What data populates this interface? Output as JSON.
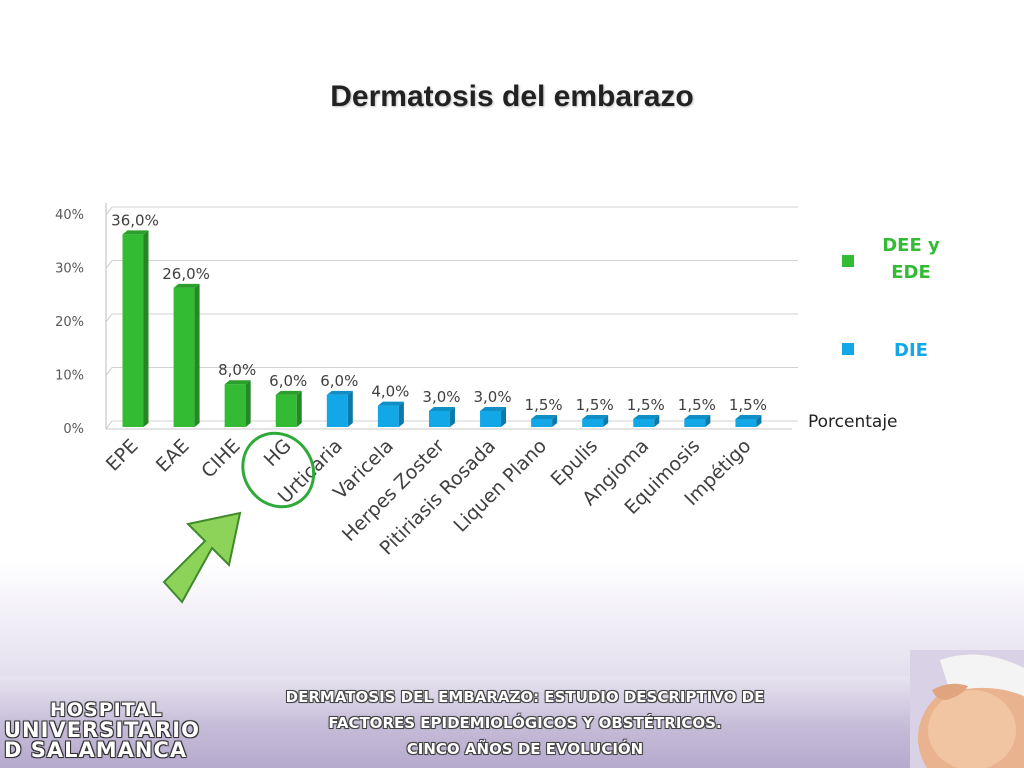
{
  "slide": {
    "title": "Dermatosis del embarazo",
    "footer_lines": [
      "DERMATOSIS DEL EMBARAZO: ESTUDIO DESCRIPTIVO DE",
      "FACTORES EPIDEMIOLÓGICOS Y OBSTÉTRICOS.",
      "CINCO AÑOS DE EVOLUCIÓN"
    ],
    "logo_lines": [
      "HOSPITAL",
      "UNIVERSITARIO",
      "D SALAMANCA"
    ]
  },
  "colors": {
    "green": "#33bb33",
    "blue": "#12a8e8",
    "annotation_green": "#2eaa3a",
    "arrow_fill": "#8dd35a"
  },
  "chart_data": {
    "type": "bar",
    "title": "Dermatosis del embarazo",
    "categories": [
      "EPE",
      "EAE",
      "CIHE",
      "HG",
      "Urticaria",
      "Varicela",
      "Herpes Zoster",
      "Pitiriasis Rosada",
      "Liquen Plano",
      "Epulis",
      "Angioma",
      "Equimosis",
      "Impétigo"
    ],
    "values": [
      36.0,
      26.0,
      8.0,
      6.0,
      6.0,
      4.0,
      3.0,
      3.0,
      1.5,
      1.5,
      1.5,
      1.5,
      1.5
    ],
    "value_labels": [
      "36,0%",
      "26,0%",
      "8,0%",
      "6,0%",
      "6,0%",
      "4,0%",
      "3,0%",
      "3,0%",
      "1,5%",
      "1,5%",
      "1,5%",
      "1,5%",
      "1,5%"
    ],
    "groups": [
      "DEE y EDE",
      "DEE y EDE",
      "DEE y EDE",
      "DEE y EDE",
      "DIE",
      "DIE",
      "DIE",
      "DIE",
      "DIE",
      "DIE",
      "DIE",
      "DIE",
      "DIE"
    ],
    "series_name": "Porcentaje",
    "legend": [
      {
        "label_lines": [
          "DEE y",
          "EDE"
        ],
        "color": "#33bb33"
      },
      {
        "label_lines": [
          "DIE"
        ],
        "color": "#12a8e8"
      }
    ],
    "legend_position": "right",
    "y_ticks": [
      "0%",
      "10%",
      "20%",
      "30%",
      "40%"
    ],
    "ylim": [
      0,
      40
    ],
    "grid": true,
    "highlighted_category": "HG"
  }
}
